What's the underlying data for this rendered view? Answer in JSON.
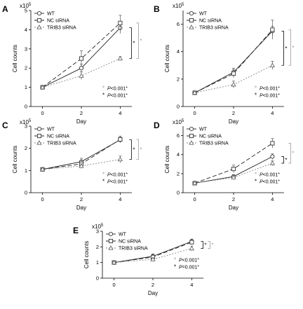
{
  "figure": {
    "panel_letters": [
      "A",
      "B",
      "C",
      "D",
      "E"
    ]
  },
  "chart_data": [
    {
      "panel": "A",
      "type": "line",
      "x": [
        0,
        2,
        4
      ],
      "xticks": [
        "0",
        "2",
        "4"
      ],
      "yticks": [
        "0",
        "1",
        "2",
        "3",
        "4",
        "5"
      ],
      "ylim": [
        0,
        5
      ],
      "scale_label": "x10",
      "scale_exp": "5",
      "xlabel": "Day",
      "ylabel": "Cell counts",
      "series": [
        {
          "name": "WT",
          "values": [
            1.0,
            2.0,
            4.1
          ],
          "err": [
            0.08,
            0.2,
            0.3
          ]
        },
        {
          "name": "NC siRNA",
          "values": [
            1.0,
            2.5,
            4.35
          ],
          "err": [
            0.08,
            0.4,
            0.4
          ]
        },
        {
          "name": "TRIB3 siRNA",
          "values": [
            1.0,
            1.6,
            2.5
          ],
          "err": [
            0.08,
            0.2,
            0.1
          ]
        }
      ],
      "significance": [
        {
          "symbol": "*",
          "marker": "open",
          "label": "P<0.001",
          "superscript": "+"
        },
        {
          "symbol": "*",
          "marker": "filled",
          "label": "P<0.001",
          "superscript": "+"
        }
      ],
      "legend_position": "top-left",
      "grid": false
    },
    {
      "panel": "B",
      "type": "line",
      "x": [
        0,
        2,
        4
      ],
      "xticks": [
        "0",
        "2",
        "4"
      ],
      "yticks": [
        "0",
        "2",
        "4",
        "6"
      ],
      "ylim": [
        0,
        7
      ],
      "scale_label": "x10",
      "scale_exp": "5",
      "xlabel": "Day",
      "ylabel": "Cell counts",
      "series": [
        {
          "name": "WT",
          "values": [
            1.0,
            2.5,
            5.5
          ],
          "err": [
            0.08,
            0.3,
            0.35
          ]
        },
        {
          "name": "NC siRNA",
          "values": [
            1.0,
            2.4,
            5.6
          ],
          "err": [
            0.08,
            0.3,
            0.7
          ]
        },
        {
          "name": "TRIB3 siRNA",
          "values": [
            1.0,
            1.6,
            3.0
          ],
          "err": [
            0.08,
            0.25,
            0.3
          ]
        }
      ],
      "significance": [
        {
          "symbol": "*",
          "marker": "open",
          "label": "P<0.001",
          "superscript": "+"
        },
        {
          "symbol": "*",
          "marker": "filled",
          "label": "P<0.001",
          "superscript": "+"
        }
      ],
      "legend_position": "top-left",
      "grid": false
    },
    {
      "panel": "C",
      "type": "line",
      "x": [
        0,
        2,
        4
      ],
      "xticks": [
        "0",
        "2",
        "4"
      ],
      "yticks": [
        "0",
        "1",
        "2",
        "3"
      ],
      "ylim": [
        0,
        3
      ],
      "scale_label": "x10",
      "scale_exp": "5",
      "xlabel": "Day",
      "ylabel": "Cell counts",
      "series": [
        {
          "name": "WT",
          "values": [
            1.05,
            1.4,
            2.38
          ],
          "err": [
            0.05,
            0.15,
            0.12
          ]
        },
        {
          "name": "NC siRNA",
          "values": [
            1.05,
            1.3,
            2.4
          ],
          "err": [
            0.05,
            0.15,
            0.15
          ]
        },
        {
          "name": "TRIB3 siRNA",
          "values": [
            1.05,
            1.2,
            1.5
          ],
          "err": [
            0.05,
            0.1,
            0.15
          ]
        }
      ],
      "significance": [
        {
          "symbol": "*",
          "marker": "open",
          "label": "P<0.001",
          "superscript": "+"
        },
        {
          "symbol": "*",
          "marker": "filled",
          "label": "P<0.001",
          "superscript": "+"
        }
      ],
      "legend_position": "top-left",
      "grid": false
    },
    {
      "panel": "D",
      "type": "line",
      "x": [
        0,
        2,
        4
      ],
      "xticks": [
        "0",
        "2",
        "4"
      ],
      "yticks": [
        "0",
        "2",
        "4",
        "6"
      ],
      "ylim": [
        0,
        7
      ],
      "scale_label": "x10",
      "scale_exp": "5",
      "xlabel": "Day",
      "ylabel": "Cell counts",
      "series": [
        {
          "name": "WT",
          "values": [
            1.0,
            1.7,
            3.8
          ],
          "err": [
            0.08,
            0.2,
            0.3
          ]
        },
        {
          "name": "NC siRNA",
          "values": [
            1.0,
            2.5,
            5.2
          ],
          "err": [
            0.08,
            0.4,
            0.5
          ]
        },
        {
          "name": "TRIB3 siRNA",
          "values": [
            1.0,
            1.6,
            3.1
          ],
          "err": [
            0.08,
            0.2,
            0.25
          ]
        }
      ],
      "significance": [
        {
          "symbol": "*",
          "marker": "open",
          "label": "P<0.001",
          "superscript": "+"
        },
        {
          "symbol": "*",
          "marker": "filled",
          "label": "P<0.001",
          "superscript": "+"
        }
      ],
      "legend_position": "top-left",
      "grid": false
    },
    {
      "panel": "E",
      "type": "line",
      "x": [
        0,
        2,
        4
      ],
      "xticks": [
        "0",
        "2",
        "4"
      ],
      "yticks": [
        "0",
        "1",
        "2",
        "3"
      ],
      "ylim": [
        0,
        3
      ],
      "scale_label": "x10",
      "scale_exp": "5",
      "xlabel": "Day",
      "ylabel": "Cell counts",
      "series": [
        {
          "name": "WT",
          "values": [
            1.0,
            1.4,
            2.35
          ],
          "err": [
            0.05,
            0.15,
            0.15
          ]
        },
        {
          "name": "NC siRNA",
          "values": [
            1.0,
            1.35,
            2.3
          ],
          "err": [
            0.05,
            0.15,
            0.15
          ]
        },
        {
          "name": "TRIB3 siRNA",
          "values": [
            1.0,
            1.2,
            1.9
          ],
          "err": [
            0.05,
            0.1,
            0.15
          ]
        }
      ],
      "significance": [
        {
          "symbol": "*",
          "marker": "open",
          "label": "P<0.001",
          "superscript": "+"
        },
        {
          "symbol": "*",
          "marker": "filled",
          "label": "P=0.001",
          "superscript": "+"
        }
      ],
      "legend_position": "top-left",
      "grid": false
    }
  ]
}
